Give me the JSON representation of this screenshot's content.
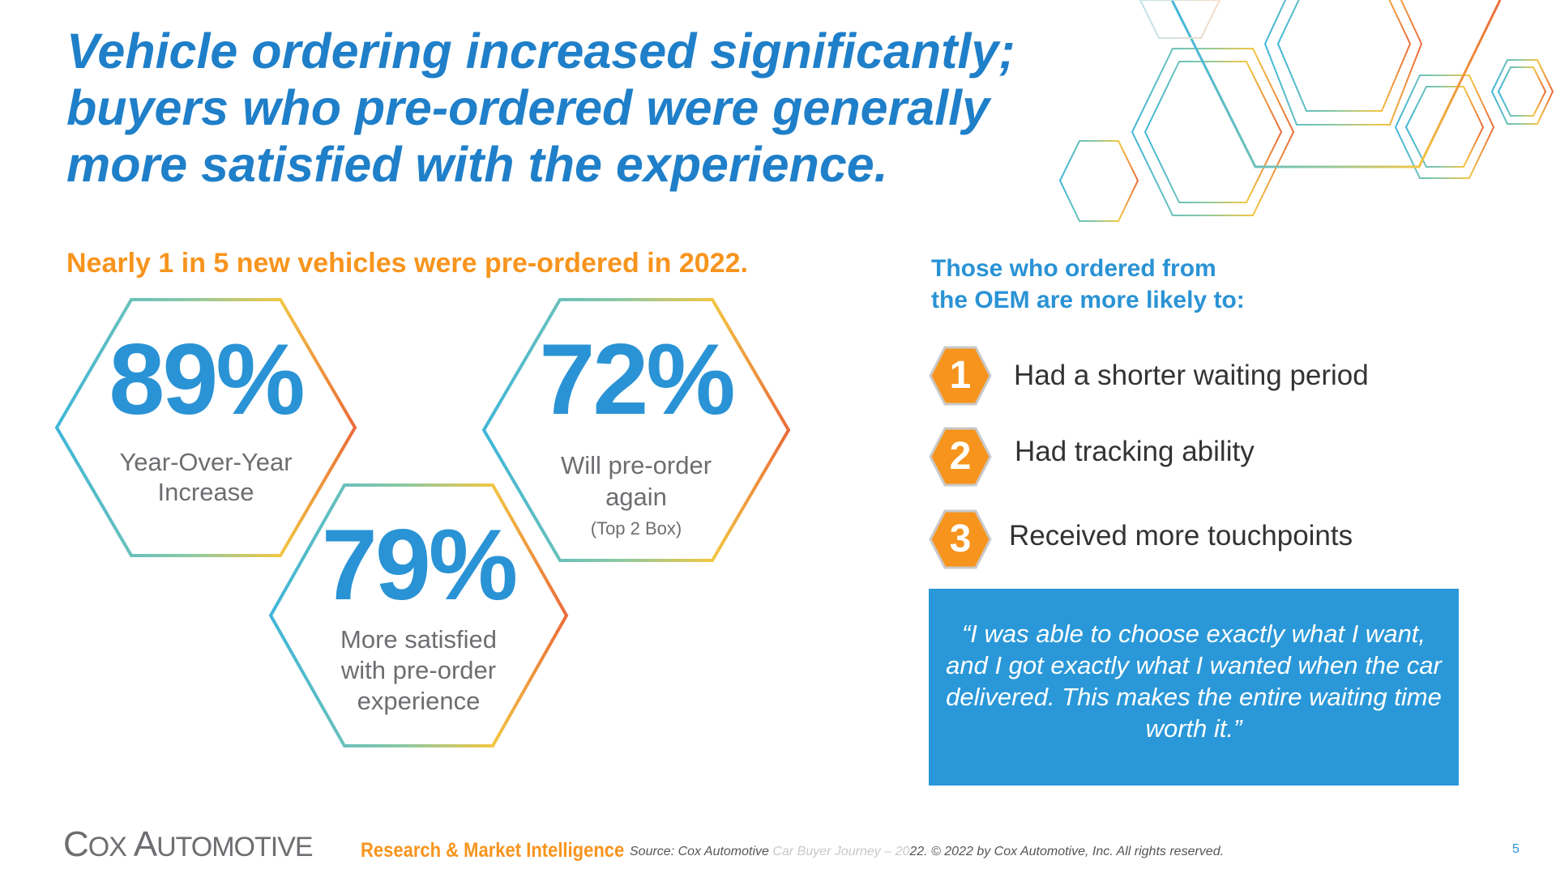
{
  "title": "Vehicle ordering increased significantly; buyers who pre-ordered were generally more satisfied with the experience.",
  "subtitle": "Nearly 1 in 5 new vehicles were pre-ordered in 2022.",
  "stats": [
    {
      "value": "89%",
      "label_line1": "Year-Over-Year",
      "label_line2": "Increase"
    },
    {
      "value": "72%",
      "label_line1": "Will pre-order",
      "label_line2": "again",
      "note": "(Top 2 Box)"
    },
    {
      "value": "79%",
      "label_line1": "More satisfied",
      "label_line2": "with pre-order",
      "label_line3": "experience"
    }
  ],
  "oem": {
    "heading_line1": "Those who ordered from",
    "heading_line2": "the OEM are more likely to:",
    "reasons": [
      {
        "num": "1",
        "label": "Had a shorter waiting period"
      },
      {
        "num": "2",
        "label": "Had tracking ability"
      },
      {
        "num": "3",
        "label": "Received more touchpoints"
      }
    ]
  },
  "quote": "“I was able to choose exactly what I want, and I got exactly what I wanted when the car delivered. This makes the entire waiting time worth it.”",
  "footer": {
    "logo": "Cox Automotive",
    "division": "Research & Market Intelligence",
    "source_a": "Source: Cox Automotive",
    "source_faint": " Car Buyer Journey – 20",
    "source_b": "22. © 2022 by Cox Automotive, Inc. All rights reserved.",
    "page": "5"
  },
  "colors": {
    "blue": "#2a93d5",
    "orange": "#f7941d",
    "title_blue": "#1f7fc9",
    "quote_bg": "#2a98d8"
  }
}
